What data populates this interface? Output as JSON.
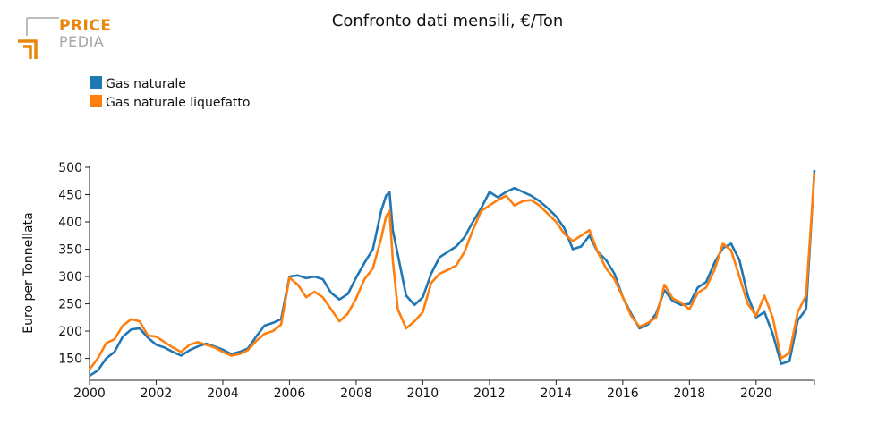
{
  "logo": {
    "line1": "PRICE",
    "line2": "PEDIA"
  },
  "chart_data": {
    "type": "line",
    "title": "Confronto dati mensili, €/Ton",
    "xlabel": "",
    "ylabel": "Euro per Tonnellata",
    "xlim": [
      2000.0,
      2021.75
    ],
    "ylim": [
      110,
      500
    ],
    "x_ticks": [
      2000,
      2002,
      2004,
      2006,
      2008,
      2010,
      2012,
      2014,
      2016,
      2018,
      2020
    ],
    "y_ticks": [
      150,
      200,
      250,
      300,
      350,
      400,
      450,
      500
    ],
    "legend_position": "top-left",
    "grid": false,
    "series": [
      {
        "name": "Gas naturale",
        "color": "#1f77b4",
        "points": [
          [
            2000.0,
            118
          ],
          [
            2000.25,
            128
          ],
          [
            2000.5,
            150
          ],
          [
            2000.75,
            162
          ],
          [
            2001.0,
            190
          ],
          [
            2001.25,
            203
          ],
          [
            2001.5,
            205
          ],
          [
            2001.75,
            188
          ],
          [
            2002.0,
            175
          ],
          [
            2002.25,
            170
          ],
          [
            2002.5,
            162
          ],
          [
            2002.75,
            155
          ],
          [
            2003.0,
            165
          ],
          [
            2003.25,
            172
          ],
          [
            2003.5,
            177
          ],
          [
            2003.75,
            172
          ],
          [
            2004.0,
            166
          ],
          [
            2004.25,
            158
          ],
          [
            2004.5,
            162
          ],
          [
            2004.75,
            168
          ],
          [
            2005.0,
            190
          ],
          [
            2005.25,
            210
          ],
          [
            2005.5,
            215
          ],
          [
            2005.75,
            222
          ],
          [
            2006.0,
            300
          ],
          [
            2006.25,
            302
          ],
          [
            2006.5,
            297
          ],
          [
            2006.75,
            300
          ],
          [
            2007.0,
            295
          ],
          [
            2007.25,
            270
          ],
          [
            2007.5,
            258
          ],
          [
            2007.75,
            268
          ],
          [
            2008.0,
            298
          ],
          [
            2008.25,
            325
          ],
          [
            2008.5,
            350
          ],
          [
            2008.75,
            420
          ],
          [
            2008.9,
            448
          ],
          [
            2009.0,
            455
          ],
          [
            2009.1,
            385
          ],
          [
            2009.25,
            340
          ],
          [
            2009.5,
            265
          ],
          [
            2009.75,
            248
          ],
          [
            2010.0,
            262
          ],
          [
            2010.25,
            305
          ],
          [
            2010.5,
            335
          ],
          [
            2010.75,
            345
          ],
          [
            2011.0,
            355
          ],
          [
            2011.25,
            372
          ],
          [
            2011.5,
            400
          ],
          [
            2011.75,
            425
          ],
          [
            2012.0,
            455
          ],
          [
            2012.25,
            445
          ],
          [
            2012.5,
            455
          ],
          [
            2012.75,
            462
          ],
          [
            2013.0,
            455
          ],
          [
            2013.25,
            448
          ],
          [
            2013.5,
            438
          ],
          [
            2013.75,
            425
          ],
          [
            2014.0,
            410
          ],
          [
            2014.25,
            388
          ],
          [
            2014.5,
            350
          ],
          [
            2014.75,
            355
          ],
          [
            2015.0,
            375
          ],
          [
            2015.25,
            345
          ],
          [
            2015.5,
            330
          ],
          [
            2015.75,
            305
          ],
          [
            2016.0,
            262
          ],
          [
            2016.25,
            232
          ],
          [
            2016.5,
            205
          ],
          [
            2016.75,
            212
          ],
          [
            2017.0,
            232
          ],
          [
            2017.25,
            275
          ],
          [
            2017.5,
            255
          ],
          [
            2017.75,
            248
          ],
          [
            2018.0,
            250
          ],
          [
            2018.25,
            280
          ],
          [
            2018.5,
            290
          ],
          [
            2018.75,
            325
          ],
          [
            2019.0,
            352
          ],
          [
            2019.25,
            360
          ],
          [
            2019.5,
            330
          ],
          [
            2019.75,
            265
          ],
          [
            2020.0,
            225
          ],
          [
            2020.25,
            235
          ],
          [
            2020.5,
            195
          ],
          [
            2020.75,
            140
          ],
          [
            2021.0,
            145
          ],
          [
            2021.25,
            220
          ],
          [
            2021.5,
            240
          ],
          [
            2021.75,
            495
          ]
        ]
      },
      {
        "name": "Gas naturale liquefatto",
        "color": "#ff7f0e",
        "points": [
          [
            2000.0,
            130
          ],
          [
            2000.25,
            150
          ],
          [
            2000.5,
            178
          ],
          [
            2000.75,
            185
          ],
          [
            2001.0,
            210
          ],
          [
            2001.25,
            222
          ],
          [
            2001.5,
            218
          ],
          [
            2001.75,
            192
          ],
          [
            2002.0,
            190
          ],
          [
            2002.25,
            180
          ],
          [
            2002.5,
            170
          ],
          [
            2002.75,
            162
          ],
          [
            2003.0,
            175
          ],
          [
            2003.25,
            180
          ],
          [
            2003.5,
            175
          ],
          [
            2003.75,
            170
          ],
          [
            2004.0,
            162
          ],
          [
            2004.25,
            155
          ],
          [
            2004.5,
            158
          ],
          [
            2004.75,
            165
          ],
          [
            2005.0,
            182
          ],
          [
            2005.25,
            195
          ],
          [
            2005.5,
            200
          ],
          [
            2005.75,
            212
          ],
          [
            2006.0,
            298
          ],
          [
            2006.25,
            285
          ],
          [
            2006.5,
            262
          ],
          [
            2006.75,
            272
          ],
          [
            2007.0,
            262
          ],
          [
            2007.25,
            240
          ],
          [
            2007.5,
            218
          ],
          [
            2007.75,
            232
          ],
          [
            2008.0,
            260
          ],
          [
            2008.25,
            295
          ],
          [
            2008.5,
            315
          ],
          [
            2008.75,
            370
          ],
          [
            2008.9,
            410
          ],
          [
            2009.0,
            420
          ],
          [
            2009.1,
            330
          ],
          [
            2009.25,
            240
          ],
          [
            2009.5,
            205
          ],
          [
            2009.75,
            218
          ],
          [
            2010.0,
            235
          ],
          [
            2010.25,
            288
          ],
          [
            2010.5,
            305
          ],
          [
            2010.75,
            312
          ],
          [
            2011.0,
            320
          ],
          [
            2011.25,
            345
          ],
          [
            2011.5,
            385
          ],
          [
            2011.75,
            420
          ],
          [
            2012.0,
            430
          ],
          [
            2012.25,
            440
          ],
          [
            2012.5,
            448
          ],
          [
            2012.75,
            430
          ],
          [
            2013.0,
            438
          ],
          [
            2013.25,
            440
          ],
          [
            2013.5,
            430
          ],
          [
            2013.75,
            415
          ],
          [
            2014.0,
            400
          ],
          [
            2014.25,
            378
          ],
          [
            2014.5,
            365
          ],
          [
            2014.75,
            375
          ],
          [
            2015.0,
            385
          ],
          [
            2015.25,
            345
          ],
          [
            2015.5,
            315
          ],
          [
            2015.75,
            295
          ],
          [
            2016.0,
            262
          ],
          [
            2016.25,
            228
          ],
          [
            2016.5,
            208
          ],
          [
            2016.75,
            215
          ],
          [
            2017.0,
            225
          ],
          [
            2017.25,
            285
          ],
          [
            2017.5,
            260
          ],
          [
            2017.75,
            252
          ],
          [
            2018.0,
            240
          ],
          [
            2018.25,
            270
          ],
          [
            2018.5,
            280
          ],
          [
            2018.75,
            312
          ],
          [
            2019.0,
            360
          ],
          [
            2019.25,
            348
          ],
          [
            2019.5,
            300
          ],
          [
            2019.75,
            250
          ],
          [
            2020.0,
            228
          ],
          [
            2020.25,
            265
          ],
          [
            2020.5,
            225
          ],
          [
            2020.75,
            150
          ],
          [
            2021.0,
            160
          ],
          [
            2021.25,
            235
          ],
          [
            2021.5,
            265
          ],
          [
            2021.75,
            490
          ]
        ]
      }
    ]
  }
}
